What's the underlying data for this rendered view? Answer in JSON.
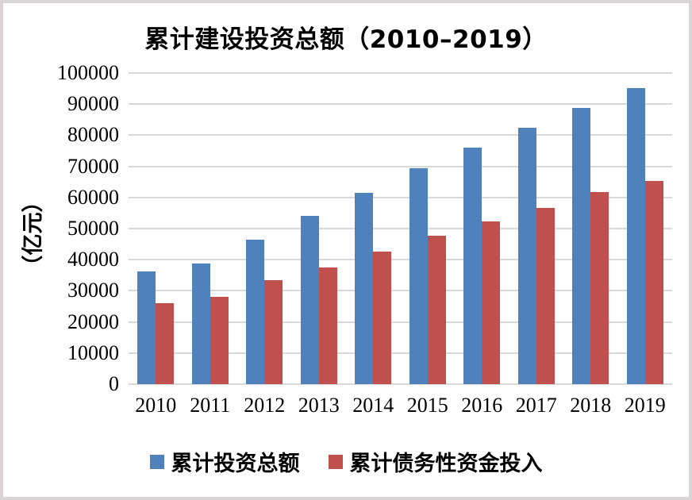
{
  "page": {
    "background_color": "#ffffff",
    "frame_border_color": "#d9d4d5"
  },
  "chart_data": {
    "type": "bar",
    "title": "累计建设投资总额（2010–2019）",
    "ylabel": "（亿元）",
    "xlabel": "",
    "categories": [
      "2010",
      "2011",
      "2012",
      "2013",
      "2014",
      "2015",
      "2016",
      "2017",
      "2018",
      "2019"
    ],
    "series": [
      {
        "name": "累计投资总额",
        "slug": "cumulative-investment-total",
        "color": "#4F81BD",
        "values": [
          36300,
          38900,
          46400,
          54200,
          61400,
          69400,
          75900,
          82300,
          88800,
          95200
        ]
      },
      {
        "name": "累计债务性资金投入",
        "slug": "cumulative-debt-capital-input",
        "color": "#C0504D",
        "values": [
          25900,
          28000,
          33500,
          37500,
          42500,
          47700,
          52200,
          56700,
          61800,
          65400
        ]
      }
    ],
    "ylim": [
      0,
      100000
    ],
    "ytick_step": 10000,
    "yticks": [
      0,
      10000,
      20000,
      30000,
      40000,
      50000,
      60000,
      70000,
      80000,
      90000,
      100000
    ],
    "grid": true,
    "gridline_color": "#d9d9d9",
    "legend_position": "bottom"
  }
}
